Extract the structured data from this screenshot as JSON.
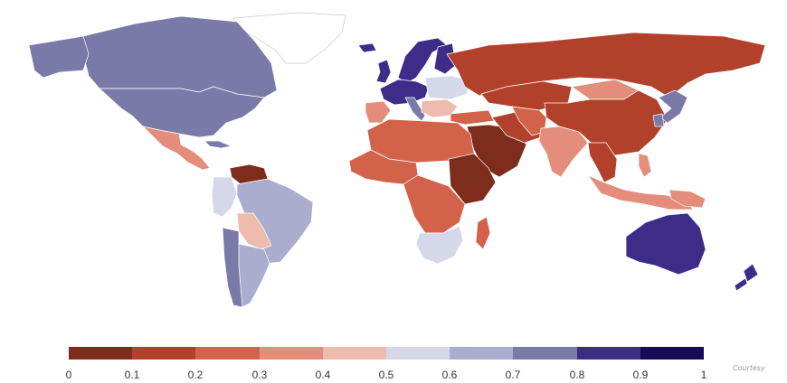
{
  "legend": {
    "ticks": [
      "0",
      "0.1",
      "0.2",
      "0.3",
      "0.4",
      "0.5",
      "0.6",
      "0.7",
      "0.8",
      "0.9",
      "1"
    ],
    "colors": [
      "#7e2c1c",
      "#b2412c",
      "#d2634a",
      "#e48d7b",
      "#eebcae",
      "#d5d8e9",
      "#aaadcd",
      "#7a7aa9",
      "#3e2c89",
      "#170a58"
    ]
  },
  "watermark": "Courtesy",
  "regions": [
    {
      "name": "greenland",
      "value": null,
      "fill": "#ffffff"
    },
    {
      "name": "canada",
      "value": 0.75
    },
    {
      "name": "alaska",
      "value": 0.75
    },
    {
      "name": "usa",
      "value": 0.73
    },
    {
      "name": "mexico",
      "value": 0.3
    },
    {
      "name": "cuba",
      "value": 0.75
    },
    {
      "name": "venezuela",
      "value": 0.05
    },
    {
      "name": "colombia",
      "value": 0.55
    },
    {
      "name": "brazil",
      "value": 0.65
    },
    {
      "name": "bolivia",
      "value": 0.45
    },
    {
      "name": "argentina",
      "value": 0.65
    },
    {
      "name": "chile",
      "value": 0.7
    },
    {
      "name": "uk",
      "value": 0.85
    },
    {
      "name": "iceland",
      "value": 0.85
    },
    {
      "name": "scandinavia",
      "value": 0.88
    },
    {
      "name": "finland",
      "value": 0.82
    },
    {
      "name": "western-europe",
      "value": 0.85
    },
    {
      "name": "iberia",
      "value": 0.3
    },
    {
      "name": "italy",
      "value": 0.72
    },
    {
      "name": "eastern-europe",
      "value": 0.55
    },
    {
      "name": "balkans",
      "value": 0.42
    },
    {
      "name": "turkey",
      "value": 0.22
    },
    {
      "name": "russia",
      "value": 0.1
    },
    {
      "name": "kazakhstan",
      "value": 0.12
    },
    {
      "name": "mongolia",
      "value": 0.35
    },
    {
      "name": "china",
      "value": 0.12
    },
    {
      "name": "japan",
      "value": 0.72
    },
    {
      "name": "south-korea",
      "value": 0.7
    },
    {
      "name": "middle-east",
      "value": 0.05
    },
    {
      "name": "iran",
      "value": 0.12
    },
    {
      "name": "central-asia",
      "value": 0.25
    },
    {
      "name": "india",
      "value": 0.3
    },
    {
      "name": "southeast-asia",
      "value": 0.15
    },
    {
      "name": "indonesia",
      "value": 0.35
    },
    {
      "name": "philippines",
      "value": 0.3
    },
    {
      "name": "new-guinea",
      "value": 0.3
    },
    {
      "name": "north-africa",
      "value": 0.2
    },
    {
      "name": "west-africa",
      "value": 0.25
    },
    {
      "name": "east-africa",
      "value": 0.05
    },
    {
      "name": "central-africa",
      "value": 0.2
    },
    {
      "name": "southern-africa",
      "value": 0.55
    },
    {
      "name": "madagascar",
      "value": 0.25
    },
    {
      "name": "australia",
      "value": 0.85
    },
    {
      "name": "new-zealand",
      "value": 0.85
    }
  ]
}
